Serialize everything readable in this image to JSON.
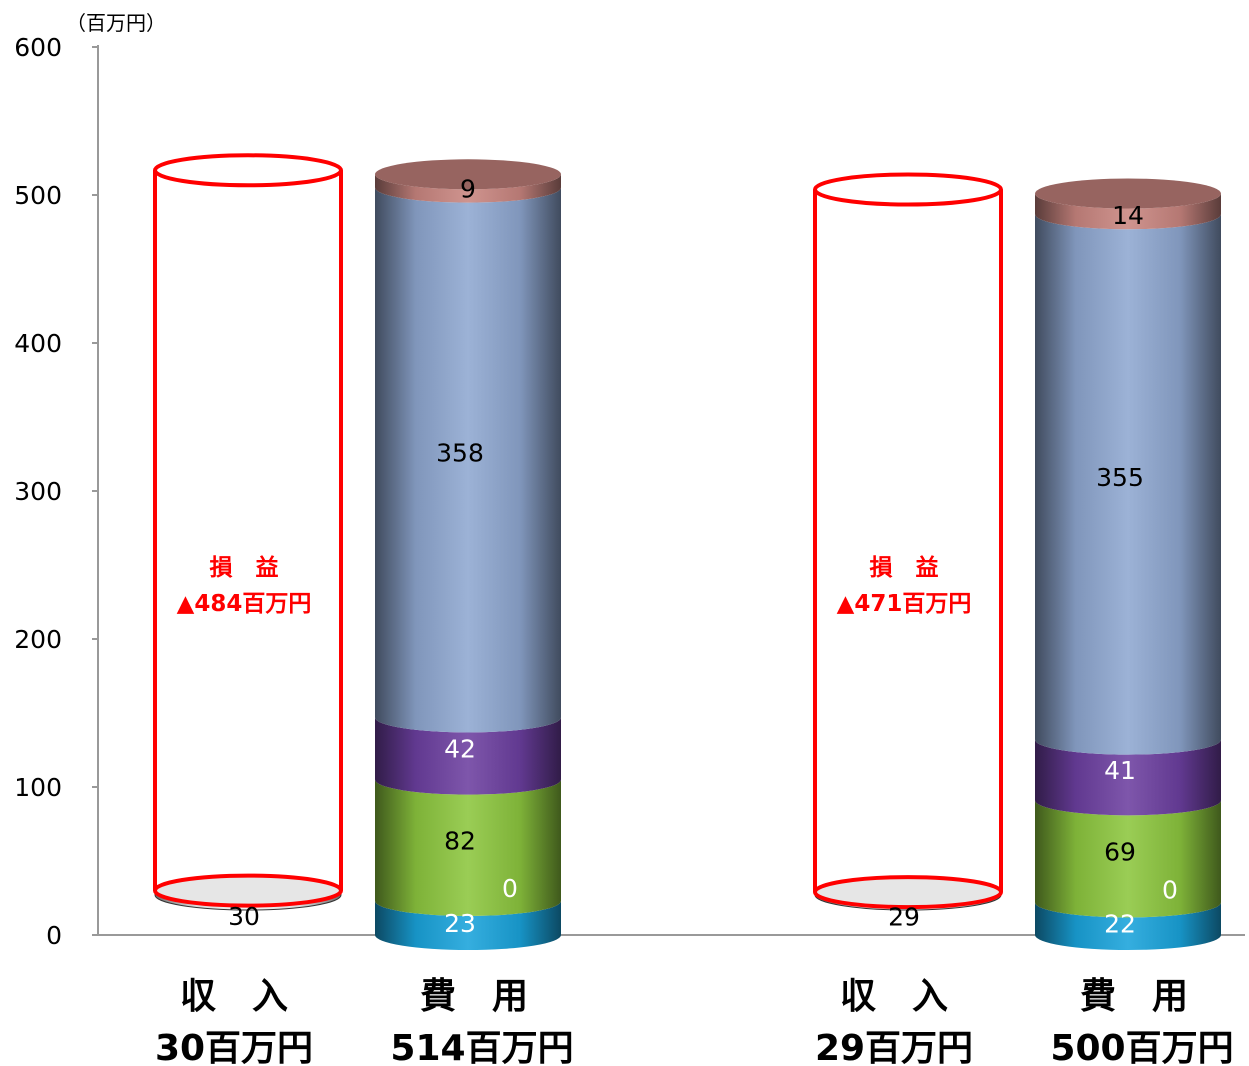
{
  "chart_data": {
    "type": "bar",
    "unit_label": "（百万円）",
    "ylim": [
      0,
      600
    ],
    "yticks": [
      "0",
      "100",
      "200",
      "300",
      "400",
      "500",
      "600"
    ],
    "groups": [
      {
        "income": {
          "title": "収　入",
          "total_label": "30百万円",
          "value": 30,
          "value_label": "30"
        },
        "profit_loss": {
          "title": "損　益",
          "value_label": "▲484百万円",
          "value": -484
        },
        "expense": {
          "title": "費　用",
          "total_label": "514百万円",
          "segments": [
            {
              "value": 23,
              "label": "23",
              "color": "#1aa3db"
            },
            {
              "value": 0,
              "label": "0",
              "color": "#9dd24a"
            },
            {
              "value": 82,
              "label": "82",
              "color": "#8cc63e"
            },
            {
              "value": 42,
              "label": "42",
              "color": "#6c3fa0"
            },
            {
              "value": 358,
              "label": "358",
              "color": "#8ea7d0"
            },
            {
              "value": 9,
              "label": "9",
              "color": "#c98580"
            }
          ]
        }
      },
      {
        "income": {
          "title": "収　入",
          "total_label": "29百万円",
          "value": 29,
          "value_label": "29"
        },
        "profit_loss": {
          "title": "損　益",
          "value_label": "▲471百万円",
          "value": -471
        },
        "expense": {
          "title": "費　用",
          "total_label": "500百万円",
          "segments": [
            {
              "value": 22,
              "label": "22",
              "color": "#1aa3db"
            },
            {
              "value": 0,
              "label": "0",
              "color": "#9dd24a"
            },
            {
              "value": 69,
              "label": "69",
              "color": "#8cc63e"
            },
            {
              "value": 41,
              "label": "41",
              "color": "#6c3fa0"
            },
            {
              "value": 355,
              "label": "355",
              "color": "#8ea7d0"
            },
            {
              "value": 14,
              "label": "14",
              "color": "#c98580"
            }
          ]
        }
      }
    ]
  }
}
